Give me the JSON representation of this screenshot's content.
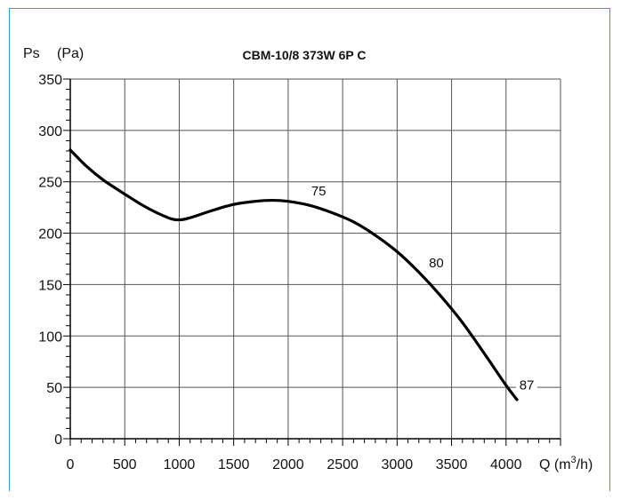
{
  "chart_data": {
    "type": "line",
    "title": "CBM-10/8 373W 6P C",
    "ylabel": "Ps",
    "ylabel_unit": "(Pa)",
    "xlabel_prefix": "Q (m",
    "xlabel_sup": "3",
    "xlabel_suffix": "/h)",
    "xlim": [
      0,
      4500
    ],
    "ylim": [
      0,
      350
    ],
    "x_ticks": [
      0,
      500,
      1000,
      1500,
      2000,
      2500,
      3000,
      3500,
      4000
    ],
    "y_ticks": [
      0,
      50,
      100,
      150,
      200,
      250,
      300,
      350
    ],
    "x_tick_labels": [
      "0",
      "500",
      "1000",
      "1500",
      "2000",
      "2500",
      "3000",
      "3500",
      "4000"
    ],
    "y_tick_labels": [
      "0",
      "50",
      "100",
      "150",
      "200",
      "250",
      "300",
      "350"
    ],
    "grid": true,
    "series": [
      {
        "x": [
          0,
          150,
          300,
          500,
          700,
          900,
          1000,
          1100,
          1300,
          1500,
          1700,
          1850,
          2000,
          2200,
          2400,
          2600,
          2800,
          3000,
          3200,
          3400,
          3600,
          3800,
          4000,
          4100
        ],
        "y": [
          281,
          265,
          252,
          238,
          225,
          215,
          213,
          215,
          222,
          228,
          231,
          232,
          231,
          227,
          220,
          211,
          198,
          182,
          162,
          139,
          113,
          83,
          52,
          38
        ],
        "color": "#000000"
      }
    ],
    "annotations": [
      {
        "text": "75",
        "x": 2280,
        "y": 237
      },
      {
        "text": "80",
        "x": 3360,
        "y": 167
      },
      {
        "text": "87",
        "x": 4190,
        "y": 48
      }
    ]
  }
}
